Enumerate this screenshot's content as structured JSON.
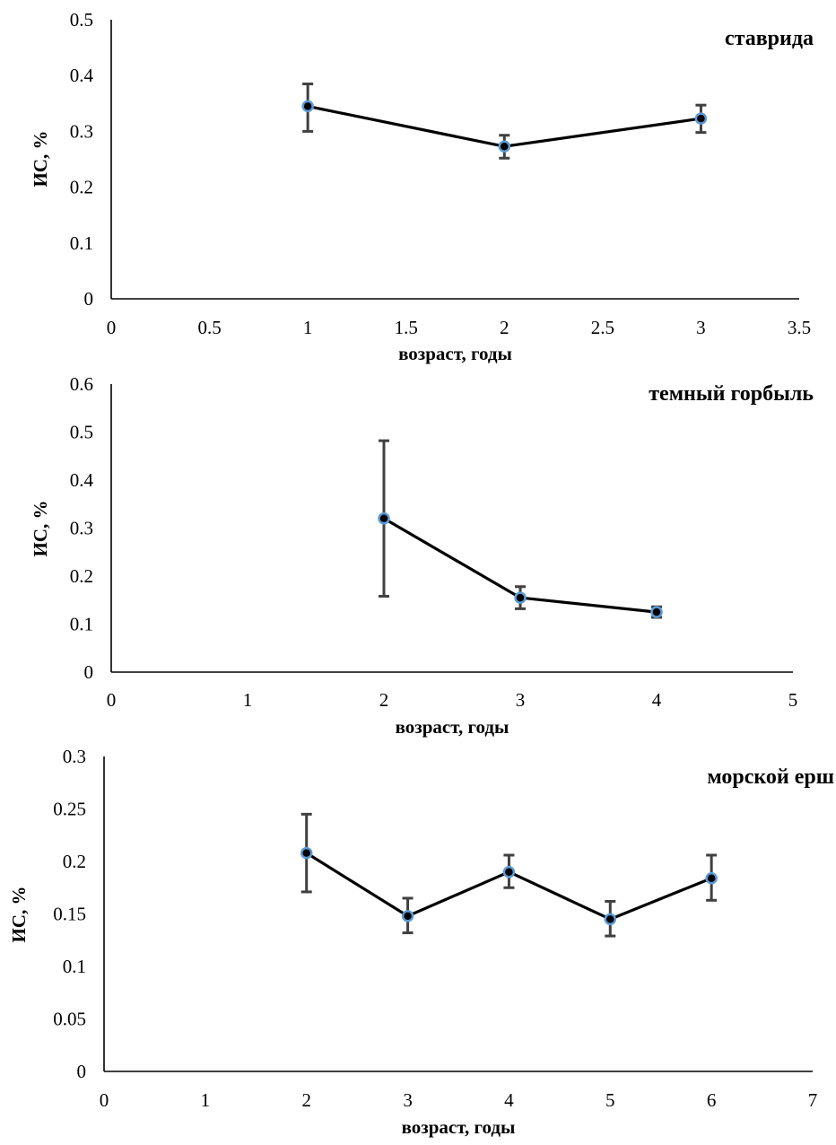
{
  "chart_data": [
    {
      "type": "line",
      "title": "ставрида",
      "xlabel": "возраст, годы",
      "ylabel": "ИС, %",
      "xlim": [
        0,
        3.5
      ],
      "ylim": [
        0,
        0.5
      ],
      "x_ticks": [
        "0",
        "0.5",
        "1",
        "1.5",
        "2",
        "2.5",
        "3",
        "3.5"
      ],
      "y_ticks": [
        "0",
        "0.1",
        "0.2",
        "0.3",
        "0.4",
        "0.5"
      ],
      "legend": "none",
      "grid": false,
      "colors": {
        "line": "#000000",
        "marker_fill": "#000000",
        "marker_edge": "#5b9bd5",
        "error_bar": "#404040"
      },
      "series": [
        {
          "x": [
            1,
            2,
            3
          ],
          "y": [
            0.345,
            0.273,
            0.323
          ],
          "err_low": [
            0.3,
            0.252,
            0.298
          ],
          "err_high": [
            0.385,
            0.293,
            0.347
          ]
        }
      ]
    },
    {
      "type": "line",
      "title": "темный горбыль",
      "xlabel": "возраст, годы",
      "ylabel": "ИС, %",
      "xlim": [
        0,
        5
      ],
      "ylim": [
        0,
        0.6
      ],
      "x_ticks": [
        "0",
        "1",
        "2",
        "3",
        "4",
        "5"
      ],
      "y_ticks": [
        "0",
        "0.1",
        "0.2",
        "0.3",
        "0.4",
        "0.5",
        "0.6"
      ],
      "legend": "none",
      "grid": false,
      "colors": {
        "line": "#000000",
        "marker_fill": "#000000",
        "marker_edge": "#5b9bd5",
        "error_bar": "#404040"
      },
      "series": [
        {
          "x": [
            2,
            3,
            4
          ],
          "y": [
            0.32,
            0.155,
            0.125
          ],
          "err_low": [
            0.158,
            0.132,
            0.114
          ],
          "err_high": [
            0.482,
            0.178,
            0.136
          ]
        }
      ]
    },
    {
      "type": "line",
      "title": "морской ерш",
      "xlabel": "возраст, годы",
      "ylabel": "ИС, %",
      "xlim": [
        0,
        7
      ],
      "ylim": [
        0,
        0.3
      ],
      "x_ticks": [
        "0",
        "1",
        "2",
        "3",
        "4",
        "5",
        "6",
        "7"
      ],
      "y_ticks": [
        "0",
        "0.05",
        "0.1",
        "0.15",
        "0.2",
        "0.25",
        "0.3"
      ],
      "legend": "none",
      "grid": false,
      "colors": {
        "line": "#000000",
        "marker_fill": "#000000",
        "marker_edge": "#5b9bd5",
        "error_bar": "#404040"
      },
      "series": [
        {
          "x": [
            2,
            3,
            4,
            5,
            6
          ],
          "y": [
            0.208,
            0.148,
            0.19,
            0.145,
            0.184
          ],
          "err_low": [
            0.171,
            0.132,
            0.175,
            0.129,
            0.163
          ],
          "err_high": [
            0.245,
            0.165,
            0.206,
            0.162,
            0.206
          ]
        }
      ]
    }
  ]
}
